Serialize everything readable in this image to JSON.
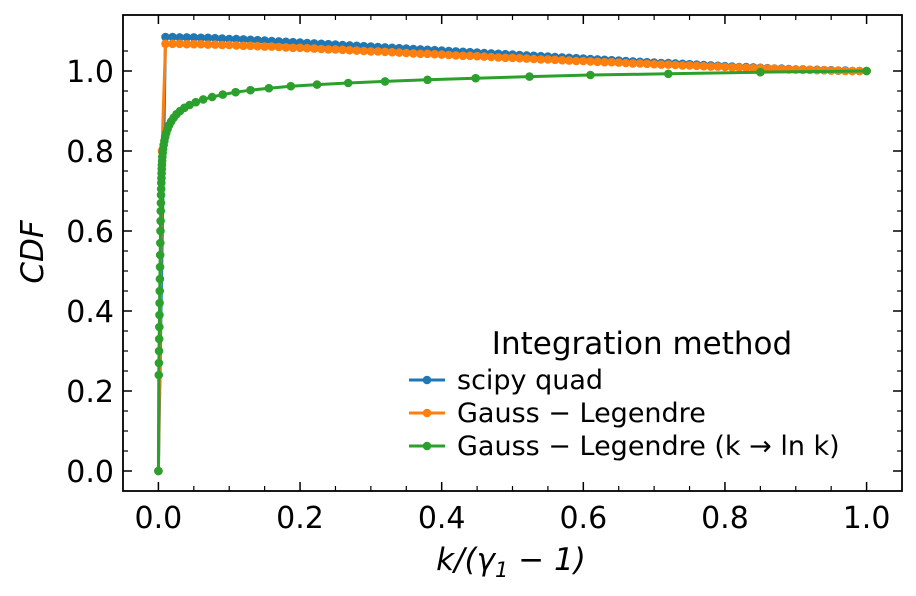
{
  "chart_data": {
    "type": "line",
    "title": "",
    "xlabel": "k/(γ₁ − 1)",
    "ylabel": "CDF",
    "xlim": [
      -0.05,
      1.05
    ],
    "ylim": [
      -0.05,
      1.14
    ],
    "xticks": [
      0.0,
      0.2,
      0.4,
      0.6,
      0.8,
      1.0
    ],
    "xtick_labels": [
      "0.0",
      "0.2",
      "0.4",
      "0.6",
      "0.8",
      "1.0"
    ],
    "yticks": [
      0.0,
      0.2,
      0.4,
      0.6,
      0.8,
      1.0
    ],
    "ytick_labels": [
      "0.0",
      "0.2",
      "0.4",
      "0.6",
      "0.8",
      "1.0"
    ],
    "grid": false,
    "legend": {
      "title": "Integration method",
      "placement": "lower-right"
    },
    "series": [
      {
        "name": "scipy quad",
        "color": "#1f77b4",
        "x": [
          0.0,
          0.01,
          0.02,
          0.03,
          0.04,
          0.05,
          0.06,
          0.07,
          0.08,
          0.09,
          0.1,
          0.11,
          0.12,
          0.13,
          0.14,
          0.15,
          0.16,
          0.17,
          0.18,
          0.19,
          0.2,
          0.21,
          0.22,
          0.23,
          0.24,
          0.25,
          0.26,
          0.27,
          0.28,
          0.29,
          0.3,
          0.31,
          0.32,
          0.33,
          0.34,
          0.35,
          0.36,
          0.37,
          0.38,
          0.39,
          0.4,
          0.41,
          0.42,
          0.43,
          0.44,
          0.45,
          0.46,
          0.47,
          0.48,
          0.49,
          0.5,
          0.51,
          0.52,
          0.53,
          0.54,
          0.55,
          0.56,
          0.57,
          0.58,
          0.59,
          0.6,
          0.61,
          0.62,
          0.63,
          0.64,
          0.65,
          0.66,
          0.67,
          0.68,
          0.69,
          0.7,
          0.71,
          0.72,
          0.73,
          0.74,
          0.75,
          0.76,
          0.77,
          0.78,
          0.79,
          0.8,
          0.81,
          0.82,
          0.83,
          0.84,
          0.85,
          0.86,
          0.87,
          0.88,
          0.89,
          0.9,
          0.91,
          0.92,
          0.93,
          0.94,
          0.95,
          0.96,
          0.97,
          0.98,
          0.99,
          1.0
        ],
        "y": [
          0.0,
          1.085,
          1.085,
          1.084,
          1.084,
          1.084,
          1.083,
          1.083,
          1.082,
          1.081,
          1.08,
          1.08,
          1.079,
          1.078,
          1.077,
          1.076,
          1.075,
          1.074,
          1.073,
          1.072,
          1.071,
          1.07,
          1.069,
          1.068,
          1.067,
          1.066,
          1.065,
          1.064,
          1.063,
          1.062,
          1.061,
          1.06,
          1.059,
          1.058,
          1.057,
          1.056,
          1.055,
          1.054,
          1.053,
          1.052,
          1.051,
          1.05,
          1.049,
          1.048,
          1.047,
          1.046,
          1.045,
          1.044,
          1.043,
          1.042,
          1.041,
          1.04,
          1.039,
          1.038,
          1.037,
          1.036,
          1.035,
          1.034,
          1.033,
          1.032,
          1.031,
          1.03,
          1.029,
          1.028,
          1.027,
          1.026,
          1.025,
          1.024,
          1.023,
          1.022,
          1.021,
          1.02,
          1.02,
          1.019,
          1.018,
          1.017,
          1.016,
          1.015,
          1.014,
          1.013,
          1.012,
          1.011,
          1.01,
          1.01,
          1.009,
          1.008,
          1.007,
          1.006,
          1.006,
          1.005,
          1.004,
          1.004,
          1.003,
          1.003,
          1.002,
          1.002,
          1.001,
          1.001,
          1.0,
          1.0,
          1.0
        ]
      },
      {
        "name": "Gauss − Legendre",
        "color": "#ff7f0e",
        "x": [
          0.0,
          0.005,
          0.01,
          0.02,
          0.03,
          0.04,
          0.05,
          0.06,
          0.07,
          0.08,
          0.09,
          0.1,
          0.11,
          0.12,
          0.13,
          0.14,
          0.15,
          0.16,
          0.17,
          0.18,
          0.19,
          0.2,
          0.21,
          0.22,
          0.23,
          0.24,
          0.25,
          0.26,
          0.27,
          0.28,
          0.29,
          0.3,
          0.31,
          0.32,
          0.33,
          0.34,
          0.35,
          0.36,
          0.37,
          0.38,
          0.39,
          0.4,
          0.41,
          0.42,
          0.43,
          0.44,
          0.45,
          0.46,
          0.47,
          0.48,
          0.49,
          0.5,
          0.51,
          0.52,
          0.53,
          0.54,
          0.55,
          0.56,
          0.57,
          0.58,
          0.59,
          0.6,
          0.61,
          0.62,
          0.63,
          0.64,
          0.65,
          0.66,
          0.67,
          0.68,
          0.69,
          0.7,
          0.71,
          0.72,
          0.73,
          0.74,
          0.75,
          0.76,
          0.77,
          0.78,
          0.79,
          0.8,
          0.81,
          0.82,
          0.83,
          0.84,
          0.85,
          0.86,
          0.87,
          0.88,
          0.89,
          0.9,
          0.91,
          0.92,
          0.93,
          0.94,
          0.95,
          0.96,
          0.97,
          0.98,
          0.99,
          1.0
        ],
        "y": [
          0.0,
          0.8,
          1.068,
          1.068,
          1.068,
          1.067,
          1.067,
          1.067,
          1.066,
          1.066,
          1.065,
          1.065,
          1.064,
          1.063,
          1.063,
          1.062,
          1.061,
          1.061,
          1.06,
          1.059,
          1.058,
          1.058,
          1.057,
          1.056,
          1.055,
          1.054,
          1.054,
          1.053,
          1.052,
          1.051,
          1.05,
          1.049,
          1.049,
          1.048,
          1.047,
          1.046,
          1.045,
          1.044,
          1.043,
          1.043,
          1.042,
          1.041,
          1.04,
          1.039,
          1.038,
          1.038,
          1.037,
          1.036,
          1.035,
          1.034,
          1.033,
          1.033,
          1.032,
          1.031,
          1.03,
          1.029,
          1.029,
          1.028,
          1.027,
          1.026,
          1.025,
          1.025,
          1.024,
          1.023,
          1.022,
          1.022,
          1.021,
          1.02,
          1.019,
          1.019,
          1.018,
          1.017,
          1.016,
          1.016,
          1.015,
          1.014,
          1.014,
          1.013,
          1.012,
          1.011,
          1.011,
          1.01,
          1.009,
          1.009,
          1.008,
          1.007,
          1.007,
          1.006,
          1.006,
          1.005,
          1.004,
          1.004,
          1.003,
          1.003,
          1.002,
          1.002,
          1.001,
          1.001,
          1.0,
          1.0,
          1.0,
          1.0
        ]
      },
      {
        "name": "Gauss − Legendre (k → ln k)",
        "color": "#2ca02c",
        "x": [
          0.0,
          0.0005,
          0.0007,
          0.0009,
          0.0011,
          0.0013,
          0.0015,
          0.0017,
          0.0019,
          0.0021,
          0.0023,
          0.0025,
          0.0027,
          0.0029,
          0.0031,
          0.0033,
          0.0035,
          0.0037,
          0.0039,
          0.0041,
          0.0043,
          0.0045,
          0.0047,
          0.0049,
          0.0052,
          0.0055,
          0.006,
          0.0066,
          0.0074,
          0.0084,
          0.0096,
          0.0111,
          0.013,
          0.0153,
          0.0181,
          0.0215,
          0.0256,
          0.0306,
          0.0367,
          0.044,
          0.0528,
          0.0633,
          0.0759,
          0.0909,
          0.109,
          0.13,
          0.156,
          0.187,
          0.224,
          0.268,
          0.32,
          0.38,
          0.448,
          0.524,
          0.61,
          0.72,
          0.85,
          1.0
        ],
        "y": [
          0.0,
          0.24,
          0.27,
          0.3,
          0.33,
          0.36,
          0.39,
          0.42,
          0.45,
          0.48,
          0.51,
          0.54,
          0.57,
          0.6,
          0.625,
          0.65,
          0.67,
          0.69,
          0.705,
          0.72,
          0.732,
          0.744,
          0.755,
          0.765,
          0.775,
          0.785,
          0.795,
          0.805,
          0.815,
          0.825,
          0.835,
          0.845,
          0.855,
          0.865,
          0.874,
          0.883,
          0.892,
          0.9,
          0.908,
          0.915,
          0.922,
          0.929,
          0.935,
          0.941,
          0.947,
          0.952,
          0.957,
          0.962,
          0.966,
          0.97,
          0.974,
          0.978,
          0.982,
          0.986,
          0.99,
          0.993,
          0.997,
          1.0
        ]
      }
    ]
  }
}
